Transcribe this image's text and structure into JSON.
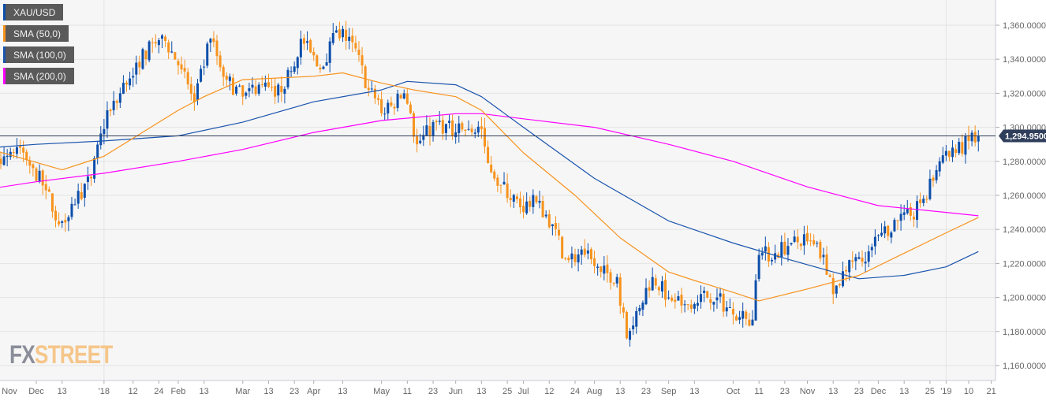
{
  "colors": {
    "bull": "#0c4eaa",
    "bear": "#f7931e",
    "sma50": "#f7931e",
    "sma100": "#1a54ad",
    "sma200": "#ff00ff",
    "price_tag": "#2f3e5a"
  },
  "legend": [
    {
      "label": "XAU/USD",
      "color": "#0c4eaa"
    },
    {
      "label": "SMA (50,0)",
      "color": "#f7931e"
    },
    {
      "label": "SMA (100,0)",
      "color": "#1a54ad"
    },
    {
      "label": "SMA (200,0)",
      "color": "#ff00ff"
    }
  ],
  "watermark": {
    "part1": "FX",
    "part2": "STREET"
  },
  "chart_data": {
    "type": "candlestick",
    "symbol": "XAU/USD",
    "ylim": [
      1150,
      1370
    ],
    "yticks": [
      1160,
      1180,
      1200,
      1220,
      1240,
      1260,
      1280,
      1300,
      1320,
      1340,
      1360
    ],
    "ytick_labels": [
      "1,160.0000",
      "1,180.0000",
      "1,200.0000",
      "1,220.0000",
      "1,240.0000",
      "1,260.0000",
      "1,280.0000",
      "1,300.0000",
      "1,320.0000",
      "1,340.0000",
      "1,360.0000"
    ],
    "last_price": 1294.95,
    "last_price_label": "1,294.95000",
    "xticks": [
      {
        "label": "Nov",
        "date": "2017-11-13"
      },
      {
        "label": "Dec",
        "date": "2017-12-01"
      },
      {
        "label": "13",
        "date": "2017-12-13"
      },
      {
        "label": "'18",
        "date": "2018-01-01"
      },
      {
        "label": "12",
        "date": "2018-01-12"
      },
      {
        "label": "24",
        "date": "2018-01-24"
      },
      {
        "label": "Feb",
        "date": "2018-02-01"
      },
      {
        "label": "13",
        "date": "2018-02-13"
      },
      {
        "label": "Mar",
        "date": "2018-03-01"
      },
      {
        "label": "13",
        "date": "2018-03-13"
      },
      {
        "label": "23",
        "date": "2018-03-23"
      },
      {
        "label": "Apr",
        "date": "2018-04-02"
      },
      {
        "label": "13",
        "date": "2018-04-13"
      },
      {
        "label": "May",
        "date": "2018-05-01"
      },
      {
        "label": "11",
        "date": "2018-05-11"
      },
      {
        "label": "23",
        "date": "2018-05-23"
      },
      {
        "label": "Jun",
        "date": "2018-06-01"
      },
      {
        "label": "13",
        "date": "2018-06-13"
      },
      {
        "label": "25",
        "date": "2018-06-25"
      },
      {
        "label": "Jul",
        "date": "2018-07-02"
      },
      {
        "label": "12",
        "date": "2018-07-12"
      },
      {
        "label": "24",
        "date": "2018-07-24"
      },
      {
        "label": "Aug",
        "date": "2018-08-01"
      },
      {
        "label": "13",
        "date": "2018-08-13"
      },
      {
        "label": "23",
        "date": "2018-08-23"
      },
      {
        "label": "Sep",
        "date": "2018-09-03"
      },
      {
        "label": "13",
        "date": "2018-09-13"
      },
      {
        "label": "Oct",
        "date": "2018-10-01"
      },
      {
        "label": "11",
        "date": "2018-10-11"
      },
      {
        "label": "23",
        "date": "2018-10-23"
      },
      {
        "label": "Nov",
        "date": "2018-11-01"
      },
      {
        "label": "13",
        "date": "2018-11-13"
      },
      {
        "label": "23",
        "date": "2018-11-23"
      },
      {
        "label": "Dec",
        "date": "2018-12-03"
      },
      {
        "label": "13",
        "date": "2018-12-13"
      },
      {
        "label": "25",
        "date": "2018-12-25"
      },
      {
        "label": "'19",
        "date": "2019-01-01"
      },
      {
        "label": "10",
        "date": "2019-01-10"
      },
      {
        "label": "21",
        "date": "2019-01-21"
      }
    ],
    "close_anchors": [
      [
        "2017-11-01",
        1277
      ],
      [
        "2017-11-08",
        1283
      ],
      [
        "2017-11-15",
        1282
      ],
      [
        "2017-11-24",
        1288
      ],
      [
        "2017-11-30",
        1276
      ],
      [
        "2017-12-06",
        1263
      ],
      [
        "2017-12-12",
        1243
      ],
      [
        "2017-12-18",
        1255
      ],
      [
        "2017-12-26",
        1270
      ],
      [
        "2018-01-02",
        1310
      ],
      [
        "2018-01-08",
        1320
      ],
      [
        "2018-01-15",
        1338
      ],
      [
        "2018-01-25",
        1354
      ],
      [
        "2018-02-02",
        1334
      ],
      [
        "2018-02-08",
        1315
      ],
      [
        "2018-02-15",
        1352
      ],
      [
        "2018-02-22",
        1328
      ],
      [
        "2018-03-01",
        1318
      ],
      [
        "2018-03-08",
        1325
      ],
      [
        "2018-03-15",
        1318
      ],
      [
        "2018-03-22",
        1333
      ],
      [
        "2018-03-27",
        1352
      ],
      [
        "2018-04-04",
        1334
      ],
      [
        "2018-04-11",
        1357
      ],
      [
        "2018-04-18",
        1350
      ],
      [
        "2018-04-25",
        1322
      ],
      [
        "2018-05-02",
        1308
      ],
      [
        "2018-05-10",
        1320
      ],
      [
        "2018-05-16",
        1290
      ],
      [
        "2018-05-24",
        1303
      ],
      [
        "2018-06-01",
        1297
      ],
      [
        "2018-06-07",
        1299
      ],
      [
        "2018-06-13",
        1299
      ],
      [
        "2018-06-15",
        1279
      ],
      [
        "2018-06-21",
        1266
      ],
      [
        "2018-06-29",
        1253
      ],
      [
        "2018-07-06",
        1256
      ],
      [
        "2018-07-13",
        1243
      ],
      [
        "2018-07-19",
        1223
      ],
      [
        "2018-07-27",
        1225
      ],
      [
        "2018-08-03",
        1215
      ],
      [
        "2018-08-10",
        1212
      ],
      [
        "2018-08-15",
        1176
      ],
      [
        "2018-08-20",
        1192
      ],
      [
        "2018-08-27",
        1212
      ],
      [
        "2018-09-03",
        1200
      ],
      [
        "2018-09-10",
        1196
      ],
      [
        "2018-09-17",
        1202
      ],
      [
        "2018-09-24",
        1200
      ],
      [
        "2018-10-01",
        1190
      ],
      [
        "2018-10-09",
        1187
      ],
      [
        "2018-10-11",
        1225
      ],
      [
        "2018-10-18",
        1226
      ],
      [
        "2018-10-25",
        1232
      ],
      [
        "2018-11-01",
        1233
      ],
      [
        "2018-11-08",
        1225
      ],
      [
        "2018-11-13",
        1202
      ],
      [
        "2018-11-20",
        1222
      ],
      [
        "2018-11-27",
        1221
      ],
      [
        "2018-12-04",
        1238
      ],
      [
        "2018-12-11",
        1245
      ],
      [
        "2018-12-17",
        1248
      ],
      [
        "2018-12-21",
        1258
      ],
      [
        "2018-12-28",
        1280
      ],
      [
        "2019-01-04",
        1285
      ],
      [
        "2019-01-10",
        1292
      ],
      [
        "2019-01-15",
        1294.95
      ]
    ],
    "sma50": [
      [
        "2017-11-13",
        1287
      ],
      [
        "2017-12-13",
        1275
      ],
      [
        "2018-01-01",
        1283
      ],
      [
        "2018-02-01",
        1310
      ],
      [
        "2018-02-13",
        1318
      ],
      [
        "2018-03-01",
        1328
      ],
      [
        "2018-04-02",
        1330
      ],
      [
        "2018-04-13",
        1332
      ],
      [
        "2018-05-01",
        1326
      ],
      [
        "2018-05-15",
        1322
      ],
      [
        "2018-06-01",
        1318
      ],
      [
        "2018-06-13",
        1310
      ],
      [
        "2018-07-02",
        1285
      ],
      [
        "2018-07-24",
        1260
      ],
      [
        "2018-08-13",
        1235
      ],
      [
        "2018-09-03",
        1215
      ],
      [
        "2018-09-13",
        1210
      ],
      [
        "2018-10-01",
        1203
      ],
      [
        "2018-10-11",
        1198
      ],
      [
        "2018-11-01",
        1205
      ],
      [
        "2018-11-23",
        1213
      ],
      [
        "2018-12-13",
        1226
      ],
      [
        "2019-01-01",
        1238
      ],
      [
        "2019-01-15",
        1247
      ]
    ],
    "sma100": [
      [
        "2017-11-13",
        1288
      ],
      [
        "2017-12-01",
        1290
      ],
      [
        "2018-01-01",
        1292
      ],
      [
        "2018-02-01",
        1295
      ],
      [
        "2018-03-01",
        1303
      ],
      [
        "2018-04-02",
        1315
      ],
      [
        "2018-05-01",
        1322
      ],
      [
        "2018-05-11",
        1327
      ],
      [
        "2018-06-01",
        1325
      ],
      [
        "2018-06-13",
        1318
      ],
      [
        "2018-07-02",
        1300
      ],
      [
        "2018-08-01",
        1270
      ],
      [
        "2018-09-03",
        1245
      ],
      [
        "2018-10-01",
        1232
      ],
      [
        "2018-10-23",
        1223
      ],
      [
        "2018-11-13",
        1215
      ],
      [
        "2018-11-23",
        1211
      ],
      [
        "2018-12-13",
        1213
      ],
      [
        "2019-01-01",
        1218
      ],
      [
        "2019-01-15",
        1227
      ]
    ],
    "sma200": [
      [
        "2017-11-13",
        1264
      ],
      [
        "2017-12-01",
        1268
      ],
      [
        "2018-01-01",
        1273
      ],
      [
        "2018-02-01",
        1280
      ],
      [
        "2018-03-01",
        1287
      ],
      [
        "2018-04-02",
        1297
      ],
      [
        "2018-05-01",
        1304
      ],
      [
        "2018-06-01",
        1308
      ],
      [
        "2018-06-13",
        1308
      ],
      [
        "2018-07-02",
        1305
      ],
      [
        "2018-08-01",
        1300
      ],
      [
        "2018-09-03",
        1290
      ],
      [
        "2018-10-01",
        1280
      ],
      [
        "2018-11-01",
        1265
      ],
      [
        "2018-12-03",
        1254
      ],
      [
        "2019-01-01",
        1250
      ],
      [
        "2019-01-15",
        1248
      ]
    ]
  }
}
